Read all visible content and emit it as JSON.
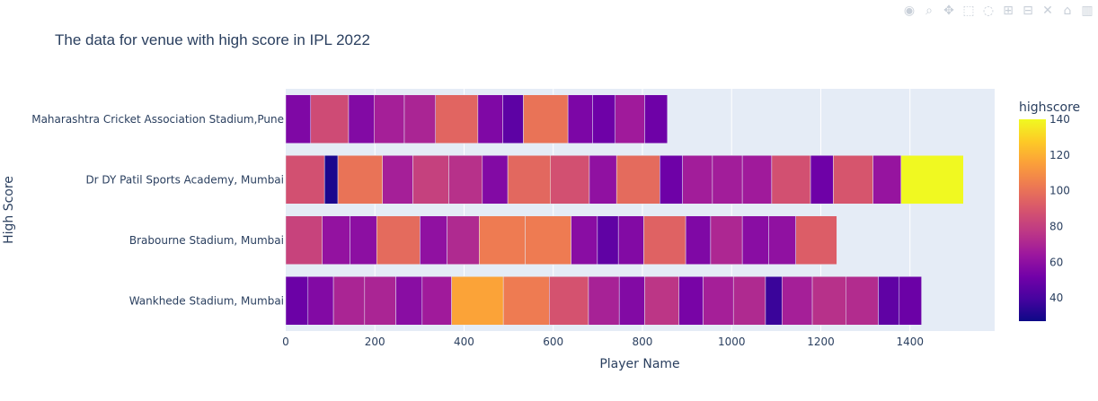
{
  "chart_data": {
    "type": "bar",
    "orientation": "horizontal",
    "stacked": true,
    "title": "The data for venue with high score in IPL 2022",
    "xlabel": "Player Name",
    "ylabel": "High Score",
    "xlim": [
      0,
      1590
    ],
    "x_ticks": [
      0,
      200,
      400,
      600,
      800,
      1000,
      1200,
      1400
    ],
    "colorbar": {
      "title": "highscore",
      "range": [
        27,
        140
      ],
      "ticks": [
        40,
        60,
        80,
        100,
        120,
        140
      ]
    },
    "categories": [
      "Wankhede Stadium, Mumbai",
      "Brabourne Stadium, Mumbai",
      "Dr DY Patil Sports Academy, Mumbai",
      "Maharashtra Cricket Association Stadium,Pune"
    ],
    "segments": [
      [
        50,
        57,
        70,
        70,
        59,
        66,
        116,
        103,
        88,
        69,
        57,
        77,
        54,
        68,
        72,
        37,
        68,
        75,
        73,
        47,
        50
      ],
      [
        82,
        62,
        60,
        97,
        61,
        72,
        103,
        103,
        59,
        47,
        57,
        94,
        56,
        71,
        59,
        61,
        92
      ],
      [
        87,
        30,
        100,
        68,
        81,
        75,
        57,
        96,
        87,
        61,
        97,
        51,
        67,
        67,
        66,
        87,
        51,
        89,
        63,
        140
      ],
      [
        56,
        85,
        57,
        68,
        70,
        95,
        56,
        46,
        100,
        55,
        51,
        66,
        51
      ]
    ]
  },
  "modebar": {
    "icons": [
      "camera-icon",
      "zoom-icon",
      "pan-icon",
      "box-select-icon",
      "lasso-icon",
      "zoom-in-icon",
      "zoom-out-icon",
      "autoscale-icon",
      "reset-axes-icon",
      "plotly-logo-icon"
    ]
  }
}
